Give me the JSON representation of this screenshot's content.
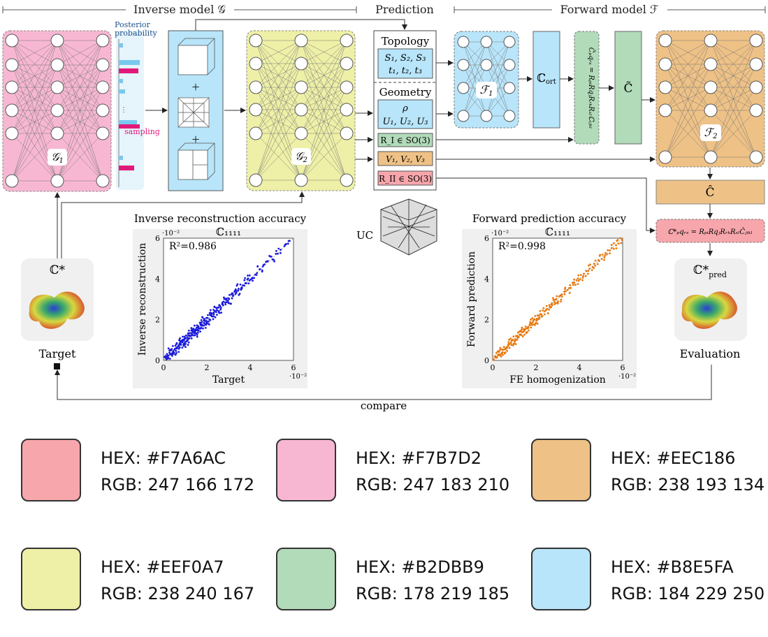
{
  "headers": {
    "inverse": "Inverse model 𝒢",
    "prediction": "Prediction",
    "forward": "Forward model ℱ"
  },
  "inverse_net": {
    "label": "𝒢",
    "sub": "1"
  },
  "posterior": {
    "title_line1": "Posterior",
    "title_line2": "probability",
    "sampling": "sampling"
  },
  "net_g2": {
    "label": "𝒢",
    "sub": "2"
  },
  "prediction_panel": {
    "topology_title": "Topology",
    "topology_line1": "S₁, S₂, S₃",
    "topology_line2": "t₁, t₂, t₃",
    "geometry_title": "Geometry",
    "geometry_line1": "ρ",
    "geometry_line2": "U₁, U₂, U₃",
    "rot1": "R_I ∈ SO(3)",
    "stretch": "V₁, V₂, V₃",
    "rot2": "R_II ∈ SO(3)"
  },
  "uc_label": "UC",
  "forward_blocks": {
    "f1_label": "ℱ",
    "f1_sub": "1",
    "c_ort": "ℂ",
    "c_ort_sub": "ort",
    "rotation_formula": "C̃ₚqᵣₛ = RₚᵢRqⱼRᵣₖRₛₗℂᵢⱼₖₗ",
    "c_tilde": "C̃",
    "f2_label": "ℱ",
    "f2_sub": "2",
    "c_hat": "Ĉ",
    "final_formula": "ℂ*ₚqᵣₛ = RₚᵢRqⱼRᵣₖRₛₗĈⱼᵢₖₗ"
  },
  "target": {
    "symbol": "ℂ*",
    "label": "Target"
  },
  "evaluation": {
    "symbol": "ℂ*",
    "symbol_sub": "pred",
    "label": "Evaluation"
  },
  "compare_label": "compare",
  "charts": {
    "inverse": {
      "heading": "Inverse reconstruction accuracy",
      "title": "ℂ₁₁₁₁",
      "r2": "R²=0.986",
      "exponent_y": "·10⁻²",
      "exponent_x": "·10⁻²",
      "ylabel": "Inverse reconstruction",
      "xlabel": "Target",
      "color": "#1a1adb"
    },
    "forward": {
      "heading": "Forward prediction accuracy",
      "title": "ℂ₁₁₁₁",
      "r2": "R²=0.998",
      "exponent_y": "·10⁻²",
      "exponent_x": "·10⁻²",
      "ylabel": "Forward prediction",
      "xlabel": "FE homogenization",
      "color": "#e8780c"
    }
  },
  "chart_data": [
    {
      "type": "scatter",
      "title": "ℂ₁₁₁₁",
      "xlabel": "Target",
      "ylabel": "Inverse reconstruction",
      "xlim": [
        0,
        6
      ],
      "ylim": [
        0,
        6
      ],
      "xticks": [
        "0",
        "2",
        "4",
        "6"
      ],
      "yticks": [
        "0",
        "2",
        "4",
        "6"
      ],
      "scale": "·10⁻²",
      "r2": 0.986,
      "points": [
        [
          0.05,
          0.1
        ],
        [
          0.1,
          0.05
        ],
        [
          0.2,
          0.25
        ],
        [
          0.3,
          0.2
        ],
        [
          0.35,
          0.45
        ],
        [
          0.45,
          0.4
        ],
        [
          0.5,
          0.6
        ],
        [
          0.6,
          0.5
        ],
        [
          0.65,
          0.7
        ],
        [
          0.7,
          0.85
        ],
        [
          0.8,
          0.75
        ],
        [
          0.85,
          0.95
        ],
        [
          0.9,
          0.8
        ],
        [
          1.0,
          1.05
        ],
        [
          1.05,
          0.9
        ],
        [
          1.1,
          1.2
        ],
        [
          1.2,
          1.1
        ],
        [
          1.25,
          1.35
        ],
        [
          1.3,
          1.2
        ],
        [
          1.4,
          1.45
        ],
        [
          1.45,
          1.3
        ],
        [
          1.5,
          1.6
        ],
        [
          1.6,
          1.5
        ],
        [
          1.65,
          1.75
        ],
        [
          1.7,
          1.6
        ],
        [
          1.8,
          1.85
        ],
        [
          1.85,
          1.7
        ],
        [
          1.9,
          2.0
        ],
        [
          2.0,
          1.9
        ],
        [
          2.1,
          2.2
        ],
        [
          2.2,
          2.05
        ],
        [
          2.25,
          2.35
        ],
        [
          2.35,
          2.25
        ],
        [
          2.45,
          2.5
        ],
        [
          2.55,
          2.45
        ],
        [
          2.65,
          2.75
        ],
        [
          2.75,
          2.7
        ],
        [
          2.9,
          2.95
        ],
        [
          3.0,
          2.9
        ],
        [
          3.1,
          3.15
        ],
        [
          3.25,
          3.3
        ],
        [
          3.4,
          3.35
        ],
        [
          3.5,
          3.6
        ],
        [
          3.7,
          3.65
        ],
        [
          3.85,
          3.9
        ],
        [
          4.0,
          4.05
        ],
        [
          4.2,
          4.15
        ],
        [
          4.45,
          4.5
        ],
        [
          4.7,
          4.75
        ],
        [
          5.0,
          5.0
        ],
        [
          5.3,
          5.35
        ],
        [
          5.7,
          5.75
        ]
      ]
    },
    {
      "type": "scatter",
      "title": "ℂ₁₁₁₁",
      "xlabel": "FE homogenization",
      "ylabel": "Forward prediction",
      "xlim": [
        0,
        6
      ],
      "ylim": [
        0,
        6
      ],
      "xticks": [
        "0",
        "2",
        "4",
        "6"
      ],
      "yticks": [
        "0",
        "2",
        "4",
        "6"
      ],
      "scale": "·10⁻²",
      "r2": 0.998,
      "points": [
        [
          0.05,
          0.05
        ],
        [
          0.15,
          0.15
        ],
        [
          0.25,
          0.28
        ],
        [
          0.35,
          0.33
        ],
        [
          0.45,
          0.47
        ],
        [
          0.55,
          0.53
        ],
        [
          0.65,
          0.67
        ],
        [
          0.75,
          0.73
        ],
        [
          0.85,
          0.88
        ],
        [
          0.95,
          0.93
        ],
        [
          1.05,
          1.07
        ],
        [
          1.15,
          1.13
        ],
        [
          1.25,
          1.28
        ],
        [
          1.35,
          1.32
        ],
        [
          1.45,
          1.47
        ],
        [
          1.55,
          1.53
        ],
        [
          1.65,
          1.68
        ],
        [
          1.75,
          1.73
        ],
        [
          1.85,
          1.87
        ],
        [
          1.95,
          1.93
        ],
        [
          2.05,
          2.08
        ],
        [
          2.15,
          2.12
        ],
        [
          2.3,
          2.32
        ],
        [
          2.45,
          2.43
        ],
        [
          2.6,
          2.62
        ],
        [
          2.75,
          2.73
        ],
        [
          2.9,
          2.92
        ],
        [
          3.05,
          3.03
        ],
        [
          3.25,
          3.27
        ],
        [
          3.45,
          3.43
        ],
        [
          3.65,
          3.67
        ],
        [
          3.85,
          3.84
        ],
        [
          4.05,
          4.07
        ],
        [
          4.3,
          4.28
        ],
        [
          4.55,
          4.57
        ],
        [
          4.8,
          4.79
        ],
        [
          5.05,
          5.07
        ],
        [
          5.3,
          5.29
        ],
        [
          5.6,
          5.61
        ],
        [
          5.85,
          5.86
        ]
      ]
    }
  ],
  "palette": [
    {
      "hex": "HEX: #F7A6AC",
      "rgb": "RGB: 247 166 172",
      "color": "#F7A6AC"
    },
    {
      "hex": "HEX: #F7B7D2",
      "rgb": "RGB: 247 183 210",
      "color": "#F7B7D2"
    },
    {
      "hex": "HEX: #EEC186",
      "rgb": "RGB: 238 193 134",
      "color": "#EEC186"
    },
    {
      "hex": "HEX: #EEF0A7",
      "rgb": "RGB: 238 240 167",
      "color": "#EEF0A7"
    },
    {
      "hex": "HEX: #B2DBB9",
      "rgb": "RGB: 178 219 185",
      "color": "#B2DBB9"
    },
    {
      "hex": "HEX: #B8E5FA",
      "rgb": "RGB: 184 229 250",
      "color": "#B8E5FA"
    }
  ]
}
